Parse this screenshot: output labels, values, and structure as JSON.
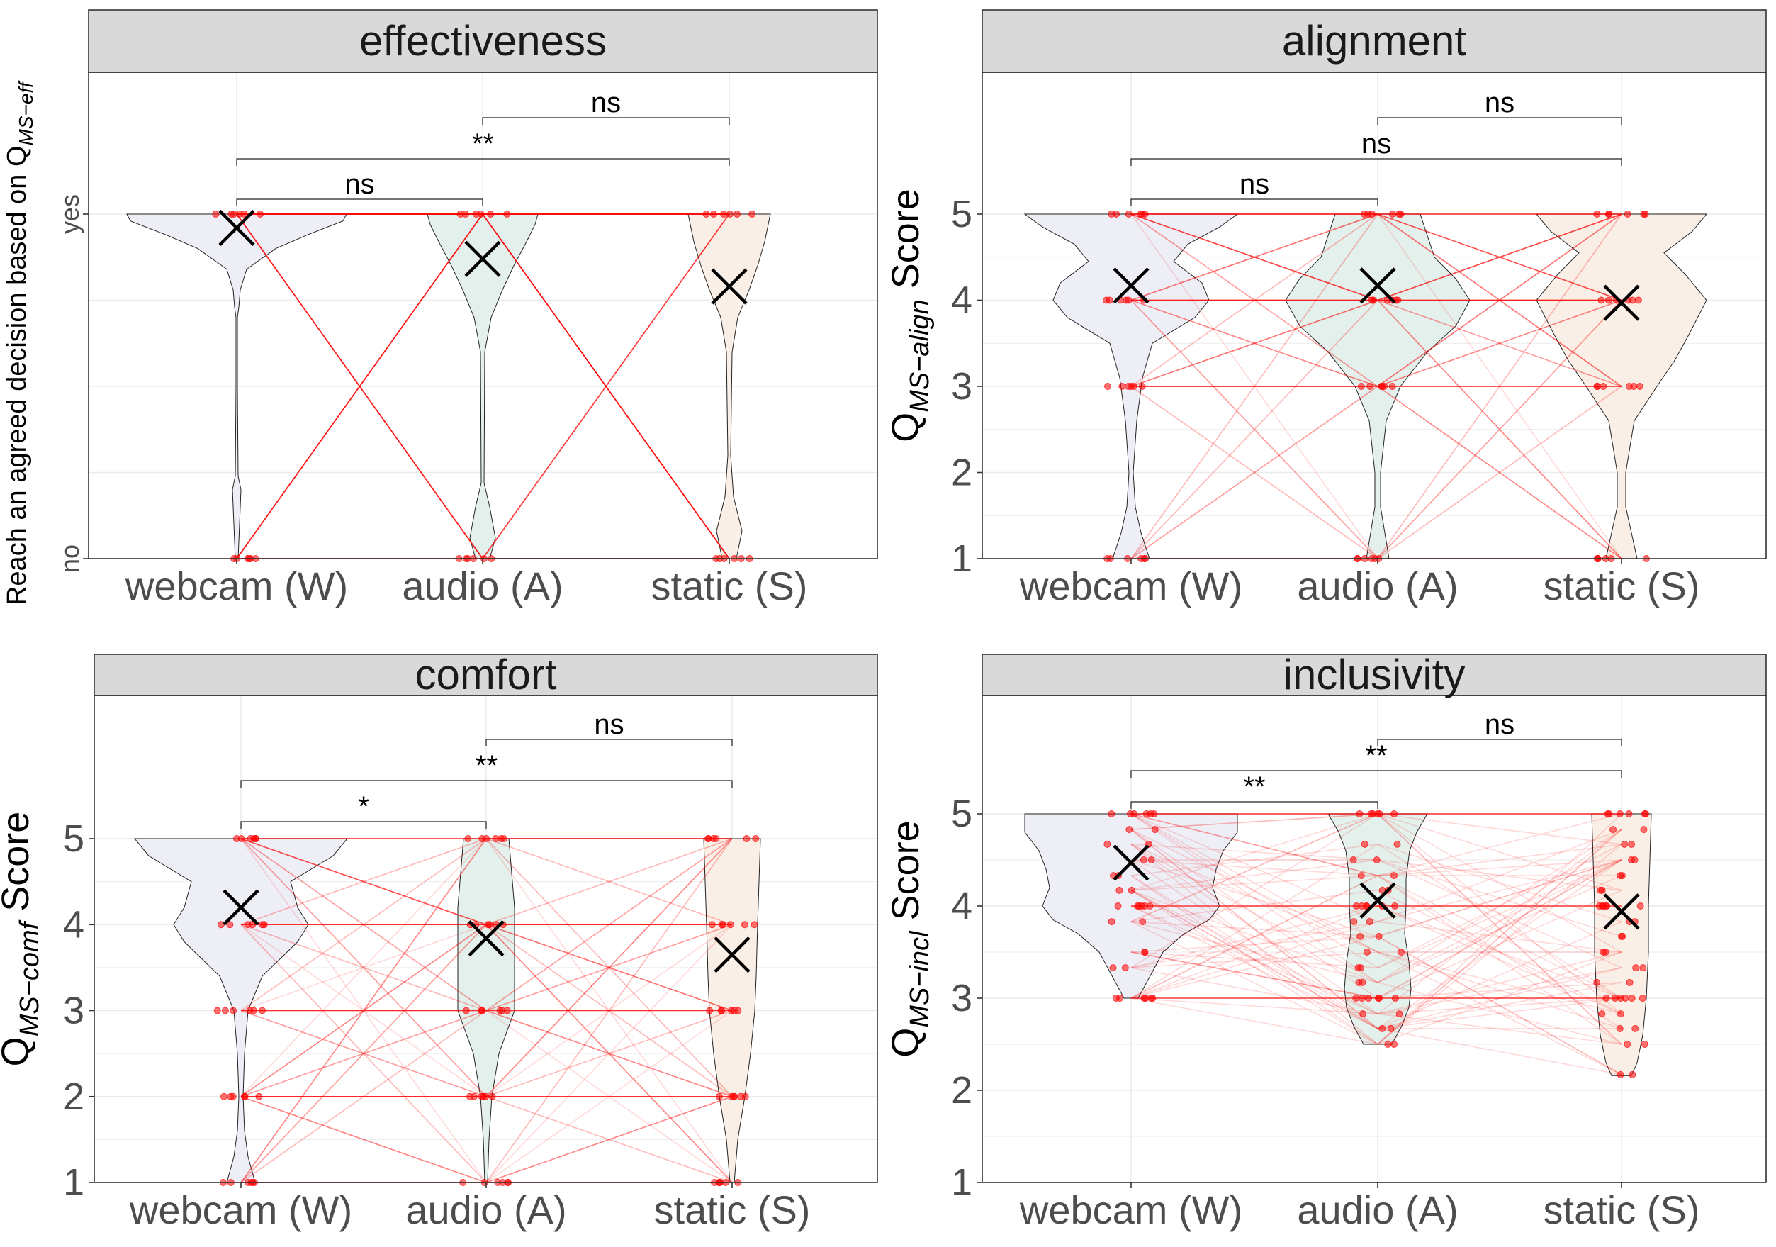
{
  "chart_data": [
    {
      "type": "violin",
      "title": "effectiveness",
      "ylabel": "Reach an agreed decision based on Q",
      "ylabel_sub": "MS−eff",
      "ylabel_suffix": "",
      "ylim": [
        0,
        1
      ],
      "y_ticks": [
        {
          "value": 0,
          "label": "no"
        },
        {
          "value": 1,
          "label": "yes"
        }
      ],
      "categories": [
        "webcam (W)",
        "audio (A)",
        "static (S)"
      ],
      "means": [
        0.96,
        0.87,
        0.79
      ],
      "point_values": [
        [
          1,
          0
        ],
        [
          1,
          0
        ],
        [
          1,
          0
        ]
      ],
      "comparisons": [
        {
          "from": 0,
          "to": 1,
          "label": "ns"
        },
        {
          "from": 0,
          "to": 2,
          "label": "**"
        },
        {
          "from": 1,
          "to": 2,
          "label": "ns"
        }
      ]
    },
    {
      "type": "violin",
      "title": "alignment",
      "ylabel": "Q",
      "ylabel_sub": "MS−align",
      "ylabel_suffix": " Score",
      "ylim": [
        1,
        5
      ],
      "y_ticks": [
        {
          "value": 1,
          "label": "1"
        },
        {
          "value": 2,
          "label": "2"
        },
        {
          "value": 3,
          "label": "3"
        },
        {
          "value": 4,
          "label": "4"
        },
        {
          "value": 5,
          "label": "5"
        }
      ],
      "categories": [
        "webcam (W)",
        "audio (A)",
        "static (S)"
      ],
      "means": [
        4.17,
        4.17,
        3.97
      ],
      "point_values": [
        [
          5,
          4,
          3,
          1
        ],
        [
          5,
          4,
          3,
          1
        ],
        [
          5,
          4,
          3,
          1
        ]
      ],
      "comparisons": [
        {
          "from": 0,
          "to": 1,
          "label": "ns"
        },
        {
          "from": 0,
          "to": 2,
          "label": "ns"
        },
        {
          "from": 1,
          "to": 2,
          "label": "ns"
        }
      ]
    },
    {
      "type": "violin",
      "title": "comfort",
      "ylabel": "Q",
      "ylabel_sub": "MS−comf",
      "ylabel_suffix": " Score",
      "ylim": [
        1,
        5
      ],
      "y_ticks": [
        {
          "value": 1,
          "label": "1"
        },
        {
          "value": 2,
          "label": "2"
        },
        {
          "value": 3,
          "label": "3"
        },
        {
          "value": 4,
          "label": "4"
        },
        {
          "value": 5,
          "label": "5"
        }
      ],
      "categories": [
        "webcam (W)",
        "audio (A)",
        "static (S)"
      ],
      "means": [
        4.2,
        3.84,
        3.65
      ],
      "point_values": [
        [
          5,
          4,
          3,
          2,
          1
        ],
        [
          5,
          4,
          3,
          2,
          1
        ],
        [
          5,
          4,
          3,
          2,
          1
        ]
      ],
      "comparisons": [
        {
          "from": 0,
          "to": 1,
          "label": "*"
        },
        {
          "from": 0,
          "to": 2,
          "label": "**"
        },
        {
          "from": 1,
          "to": 2,
          "label": "ns"
        }
      ]
    },
    {
      "type": "violin",
      "title": "inclusivity",
      "ylabel": "Q",
      "ylabel_sub": "MS−incl",
      "ylabel_suffix": " Score",
      "ylim": [
        1,
        5
      ],
      "y_ticks": [
        {
          "value": 1,
          "label": "1"
        },
        {
          "value": 2,
          "label": "2"
        },
        {
          "value": 3,
          "label": "3"
        },
        {
          "value": 4,
          "label": "4"
        },
        {
          "value": 5,
          "label": "5"
        }
      ],
      "categories": [
        "webcam (W)",
        "audio (A)",
        "static (S)"
      ],
      "means": [
        4.47,
        4.06,
        3.94
      ],
      "point_values": [
        [
          5,
          4.83,
          4.67,
          4.5,
          4.33,
          4.17,
          4,
          3.83,
          3.5,
          3.33,
          3
        ],
        [
          5,
          4.67,
          4.5,
          4.33,
          4.17,
          4,
          3.83,
          3.67,
          3.5,
          3.33,
          3.17,
          3,
          2.83,
          2.67,
          2.5
        ],
        [
          5,
          4.83,
          4.67,
          4.5,
          4.33,
          4.17,
          4,
          3.83,
          3.67,
          3.5,
          3.33,
          3.17,
          3,
          2.83,
          2.67,
          2.5,
          2.17
        ]
      ],
      "comparisons": [
        {
          "from": 0,
          "to": 1,
          "label": "**"
        },
        {
          "from": 0,
          "to": 2,
          "label": "**"
        },
        {
          "from": 1,
          "to": 2,
          "label": "ns"
        }
      ]
    }
  ],
  "colors": {
    "strip_fill": "#d9d9d9",
    "panel_border": "#333333",
    "grid": "#ebebeb",
    "points": "#ff0000",
    "lines": "#ff0000",
    "violin_fills": [
      "#eeeef6",
      "#e4f0ec",
      "#faefe6"
    ],
    "mean_marker": "#000000"
  }
}
